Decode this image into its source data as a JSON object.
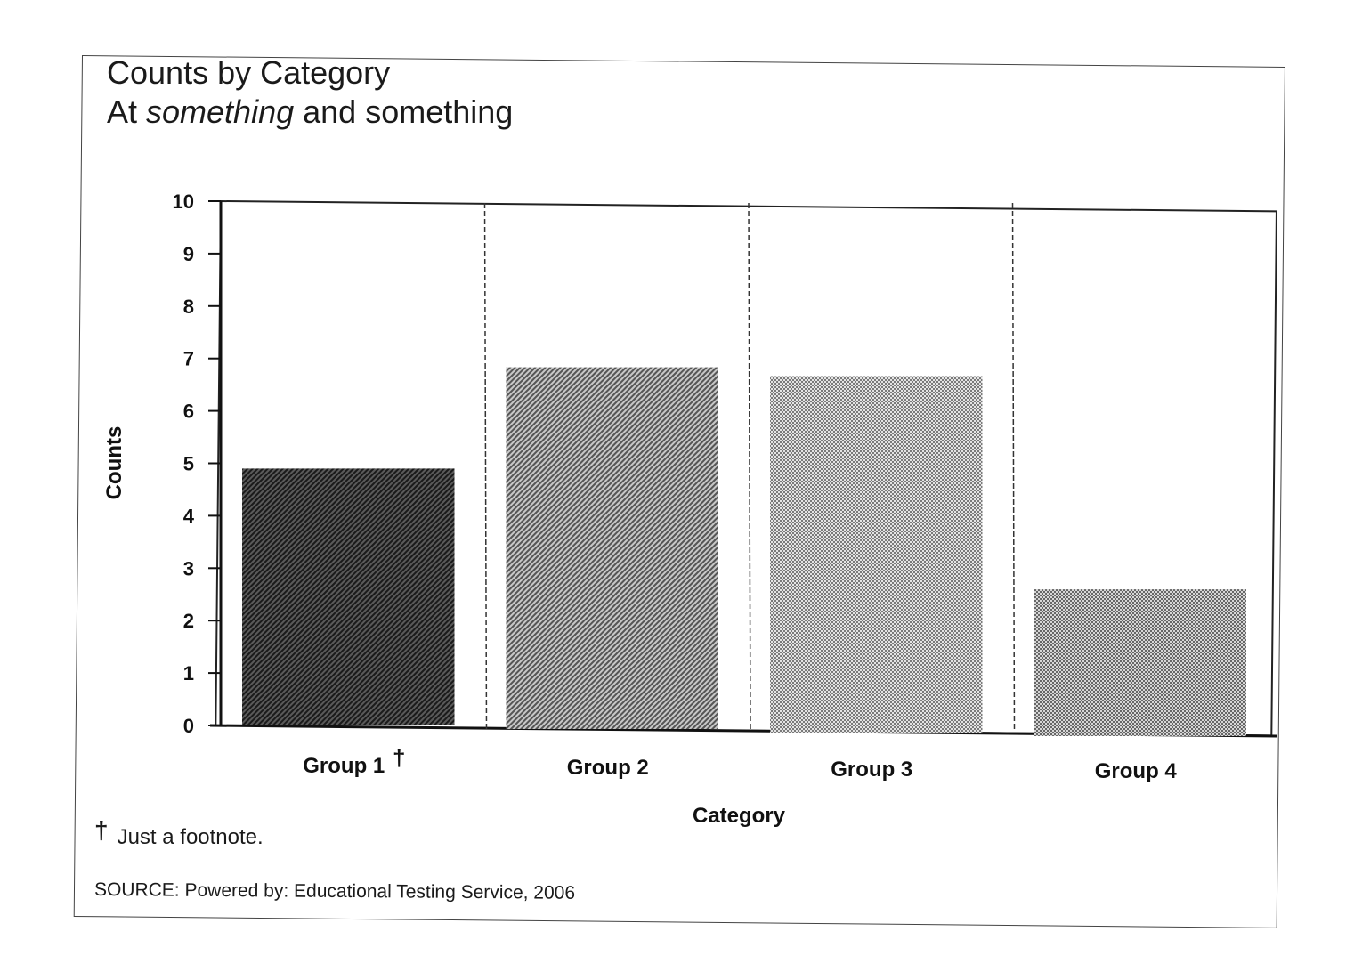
{
  "chart_data": {
    "type": "bar",
    "title": "Counts by Category",
    "subtitle": {
      "prefix": "At ",
      "emphasis": "something",
      "suffix": " and something"
    },
    "xlabel": "Category",
    "ylabel": "Counts",
    "ylim": [
      0,
      10
    ],
    "yticks": [
      "0",
      "1",
      "2",
      "3",
      "4",
      "5",
      "6",
      "7",
      "8",
      "9",
      "10"
    ],
    "categories": [
      "Group 1",
      "Group 2",
      "Group 3",
      "Group 4"
    ],
    "category_marks": [
      "†",
      "",
      "",
      ""
    ],
    "values": [
      4.9,
      6.9,
      6.8,
      2.8
    ],
    "bar_colors": [
      "#3a3a3a",
      "#8e8e8e",
      "#b4b4b4",
      "#a8a8a8"
    ],
    "grid": "vertical dashed separators between categories",
    "legend": "none"
  },
  "footnote": {
    "mark": "†",
    "text": "Just a footnote."
  },
  "source": "SOURCE: Powered by: Educational Testing Service, 2006"
}
